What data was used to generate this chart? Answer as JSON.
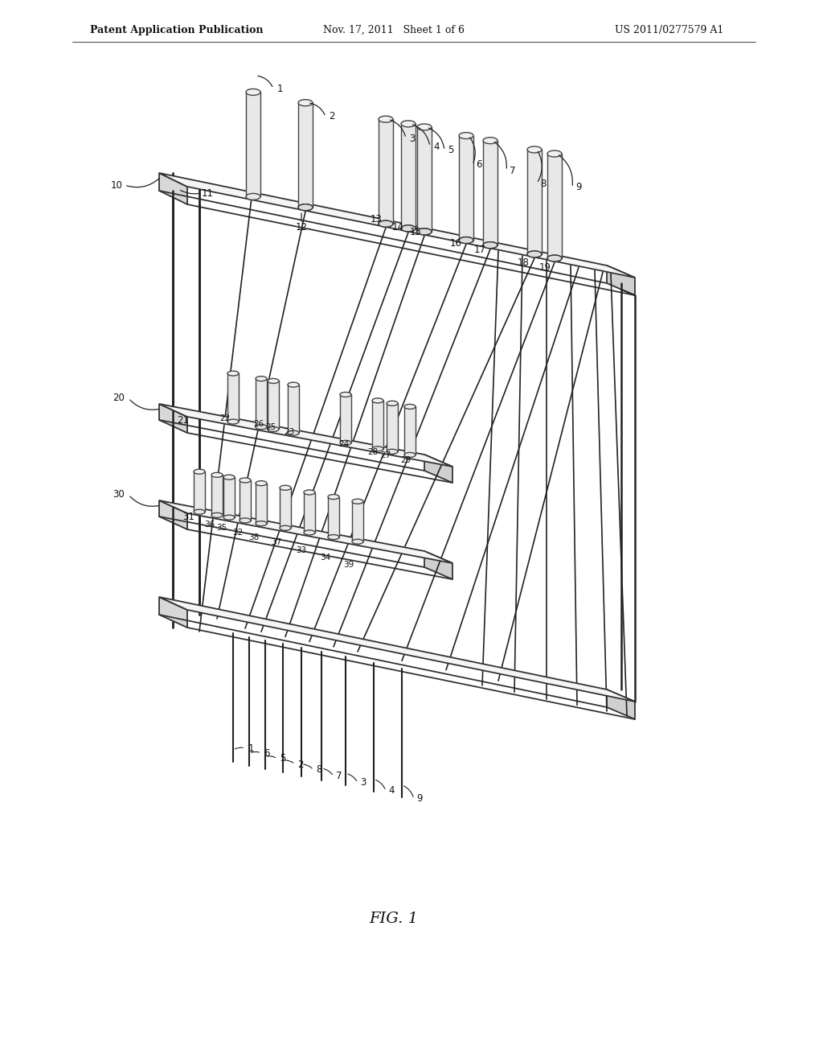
{
  "title": "FIG. 1",
  "header_left": "Patent Application Publication",
  "header_mid": "Nov. 17, 2011   Sheet 1 of 6",
  "header_right": "US 2011/0277579 A1",
  "background_color": "#ffffff",
  "line_color": "#222222",
  "plate_fill": "#ececec",
  "plate_top": "#f5f5f5",
  "plate_edge": "#333333",
  "plate_front": "#d8d8d8",
  "cyl_body": "#e8e8e8",
  "cyl_top": "#f0f0f0",
  "cyl_edge": "#444444"
}
